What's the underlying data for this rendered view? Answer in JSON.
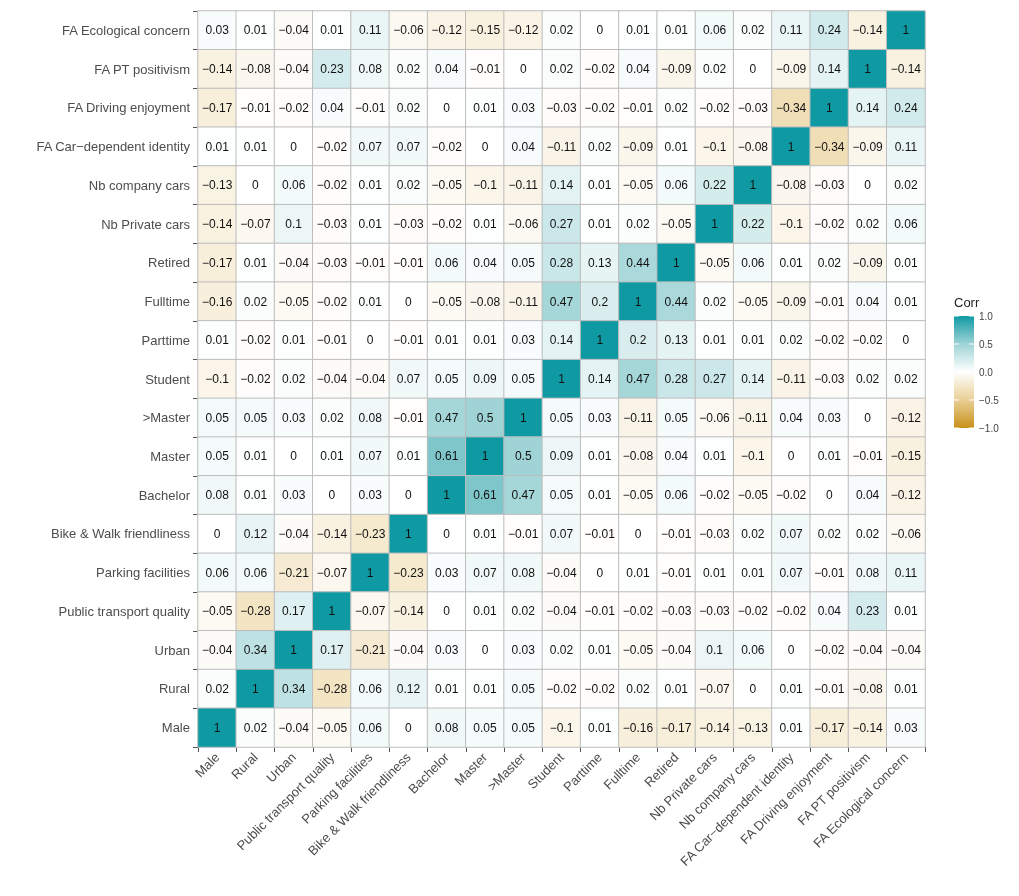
{
  "chart_data": {
    "type": "heatmap",
    "clabel": "Corr",
    "data_labels": true,
    "clim": [
      -1,
      1
    ],
    "cticks": [
      {
        "value": -1,
        "label": "−1.0"
      },
      {
        "value": -0.5,
        "label": "−0.5"
      },
      {
        "value": 0,
        "label": "0.0"
      },
      {
        "value": 0.5,
        "label": "0.5"
      },
      {
        "value": 1,
        "label": "1.0"
      }
    ],
    "categories": [
      "Male",
      "Rural",
      "Urban",
      "Public transport quality",
      "Parking facilities",
      "Bike & Walk friendliness",
      "Bachelor",
      "Master",
      ">Master",
      "Student",
      "Parttime",
      "Fulltime",
      "Retired",
      "Nb Private cars",
      "Nb company cars",
      "FA Car−dependent identity",
      "FA Driving enjoyment",
      "FA PT positivism",
      "FA Ecological concern"
    ],
    "y_categories": [
      "FA Ecological concern",
      "FA PT positivism",
      "FA Driving enjoyment",
      "FA Car−dependent identity",
      "Nb company cars",
      "Nb Private cars",
      "Retired",
      "Fulltime",
      "Parttime",
      "Student",
      ">Master",
      "Master",
      "Bachelor",
      "Bike & Walk friendliness",
      "Parking facilities",
      "Public transport quality",
      "Urban",
      "Rural",
      "Male"
    ],
    "cells": [
      [
        0.03,
        0.01,
        -0.04,
        0.01,
        0.11,
        -0.06,
        -0.12,
        -0.15,
        -0.12,
        0.02,
        0,
        0.01,
        0.01,
        0.06,
        0.02,
        0.11,
        0.24,
        -0.14,
        1
      ],
      [
        -0.14,
        -0.08,
        -0.04,
        0.23,
        0.08,
        0.02,
        0.04,
        -0.01,
        0,
        0.02,
        -0.02,
        0.04,
        -0.09,
        0.02,
        0,
        -0.09,
        0.14,
        1,
        -0.14
      ],
      [
        -0.17,
        -0.01,
        -0.02,
        0.04,
        -0.01,
        0.02,
        0,
        0.01,
        0.03,
        -0.03,
        -0.02,
        -0.01,
        0.02,
        -0.02,
        -0.03,
        -0.34,
        1,
        0.14,
        0.24
      ],
      [
        0.01,
        0.01,
        0,
        -0.02,
        0.07,
        0.07,
        -0.02,
        0,
        0.04,
        -0.11,
        0.02,
        -0.09,
        0.01,
        -0.1,
        -0.08,
        1,
        -0.34,
        -0.09,
        0.11
      ],
      [
        -0.13,
        0,
        0.06,
        -0.02,
        0.01,
        0.02,
        -0.05,
        -0.1,
        -0.11,
        0.14,
        0.01,
        -0.05,
        0.06,
        0.22,
        1,
        -0.08,
        -0.03,
        0,
        0.02
      ],
      [
        -0.14,
        -0.07,
        0.1,
        -0.03,
        0.01,
        -0.03,
        -0.02,
        0.01,
        -0.06,
        0.27,
        0.01,
        0.02,
        -0.05,
        1,
        0.22,
        -0.1,
        -0.02,
        0.02,
        0.06
      ],
      [
        -0.17,
        0.01,
        -0.04,
        -0.03,
        -0.01,
        -0.01,
        0.06,
        0.04,
        0.05,
        0.28,
        0.13,
        0.44,
        1,
        -0.05,
        0.06,
        0.01,
        0.02,
        -0.09,
        0.01
      ],
      [
        -0.16,
        0.02,
        -0.05,
        -0.02,
        0.01,
        0,
        -0.05,
        -0.08,
        -0.11,
        0.47,
        0.2,
        1,
        0.44,
        0.02,
        -0.05,
        -0.09,
        -0.01,
        0.04,
        0.01
      ],
      [
        0.01,
        -0.02,
        0.01,
        -0.01,
        0,
        -0.01,
        0.01,
        0.01,
        0.03,
        0.14,
        1,
        0.2,
        0.13,
        0.01,
        0.01,
        0.02,
        -0.02,
        -0.02,
        0
      ],
      [
        -0.1,
        -0.02,
        0.02,
        -0.04,
        -0.04,
        0.07,
        0.05,
        0.09,
        0.05,
        1,
        0.14,
        0.47,
        0.28,
        0.27,
        0.14,
        -0.11,
        -0.03,
        0.02,
        0.02
      ],
      [
        0.05,
        0.05,
        0.03,
        0.02,
        0.08,
        -0.01,
        0.47,
        0.5,
        1,
        0.05,
        0.03,
        -0.11,
        0.05,
        -0.06,
        -0.11,
        0.04,
        0.03,
        0,
        -0.12
      ],
      [
        0.05,
        0.01,
        0,
        0.01,
        0.07,
        0.01,
        0.61,
        1,
        0.5,
        0.09,
        0.01,
        -0.08,
        0.04,
        0.01,
        -0.1,
        0,
        0.01,
        -0.01,
        -0.15
      ],
      [
        0.08,
        0.01,
        0.03,
        0,
        0.03,
        0,
        1,
        0.61,
        0.47,
        0.05,
        0.01,
        -0.05,
        0.06,
        -0.02,
        -0.05,
        -0.02,
        0,
        0.04,
        -0.12
      ],
      [
        0,
        0.12,
        -0.04,
        -0.14,
        -0.23,
        1,
        0,
        0.01,
        -0.01,
        0.07,
        -0.01,
        0,
        -0.01,
        -0.03,
        0.02,
        0.07,
        0.02,
        0.02,
        -0.06
      ],
      [
        0.06,
        0.06,
        -0.21,
        -0.07,
        1,
        -0.23,
        0.03,
        0.07,
        0.08,
        -0.04,
        0,
        0.01,
        -0.01,
        0.01,
        0.01,
        0.07,
        -0.01,
        0.08,
        0.11
      ],
      [
        -0.05,
        -0.28,
        0.17,
        1,
        -0.07,
        -0.14,
        0,
        0.01,
        0.02,
        -0.04,
        -0.01,
        -0.02,
        -0.03,
        -0.03,
        -0.02,
        -0.02,
        0.04,
        0.23,
        0.01
      ],
      [
        -0.04,
        0.34,
        1,
        0.17,
        -0.21,
        -0.04,
        0.03,
        0,
        0.03,
        0.02,
        0.01,
        -0.05,
        -0.04,
        0.1,
        0.06,
        0,
        -0.02,
        -0.04,
        -0.04
      ],
      [
        0.02,
        1,
        0.34,
        -0.28,
        0.06,
        0.12,
        0.01,
        0.01,
        0.05,
        -0.02,
        -0.02,
        0.02,
        0.01,
        -0.07,
        0,
        0.01,
        -0.01,
        -0.08,
        0.01
      ],
      [
        1,
        0.02,
        -0.04,
        -0.05,
        0.06,
        0,
        0.08,
        0.05,
        0.05,
        -0.1,
        0.01,
        -0.16,
        -0.17,
        -0.14,
        -0.13,
        0.01,
        -0.17,
        -0.14,
        0.03
      ]
    ]
  }
}
